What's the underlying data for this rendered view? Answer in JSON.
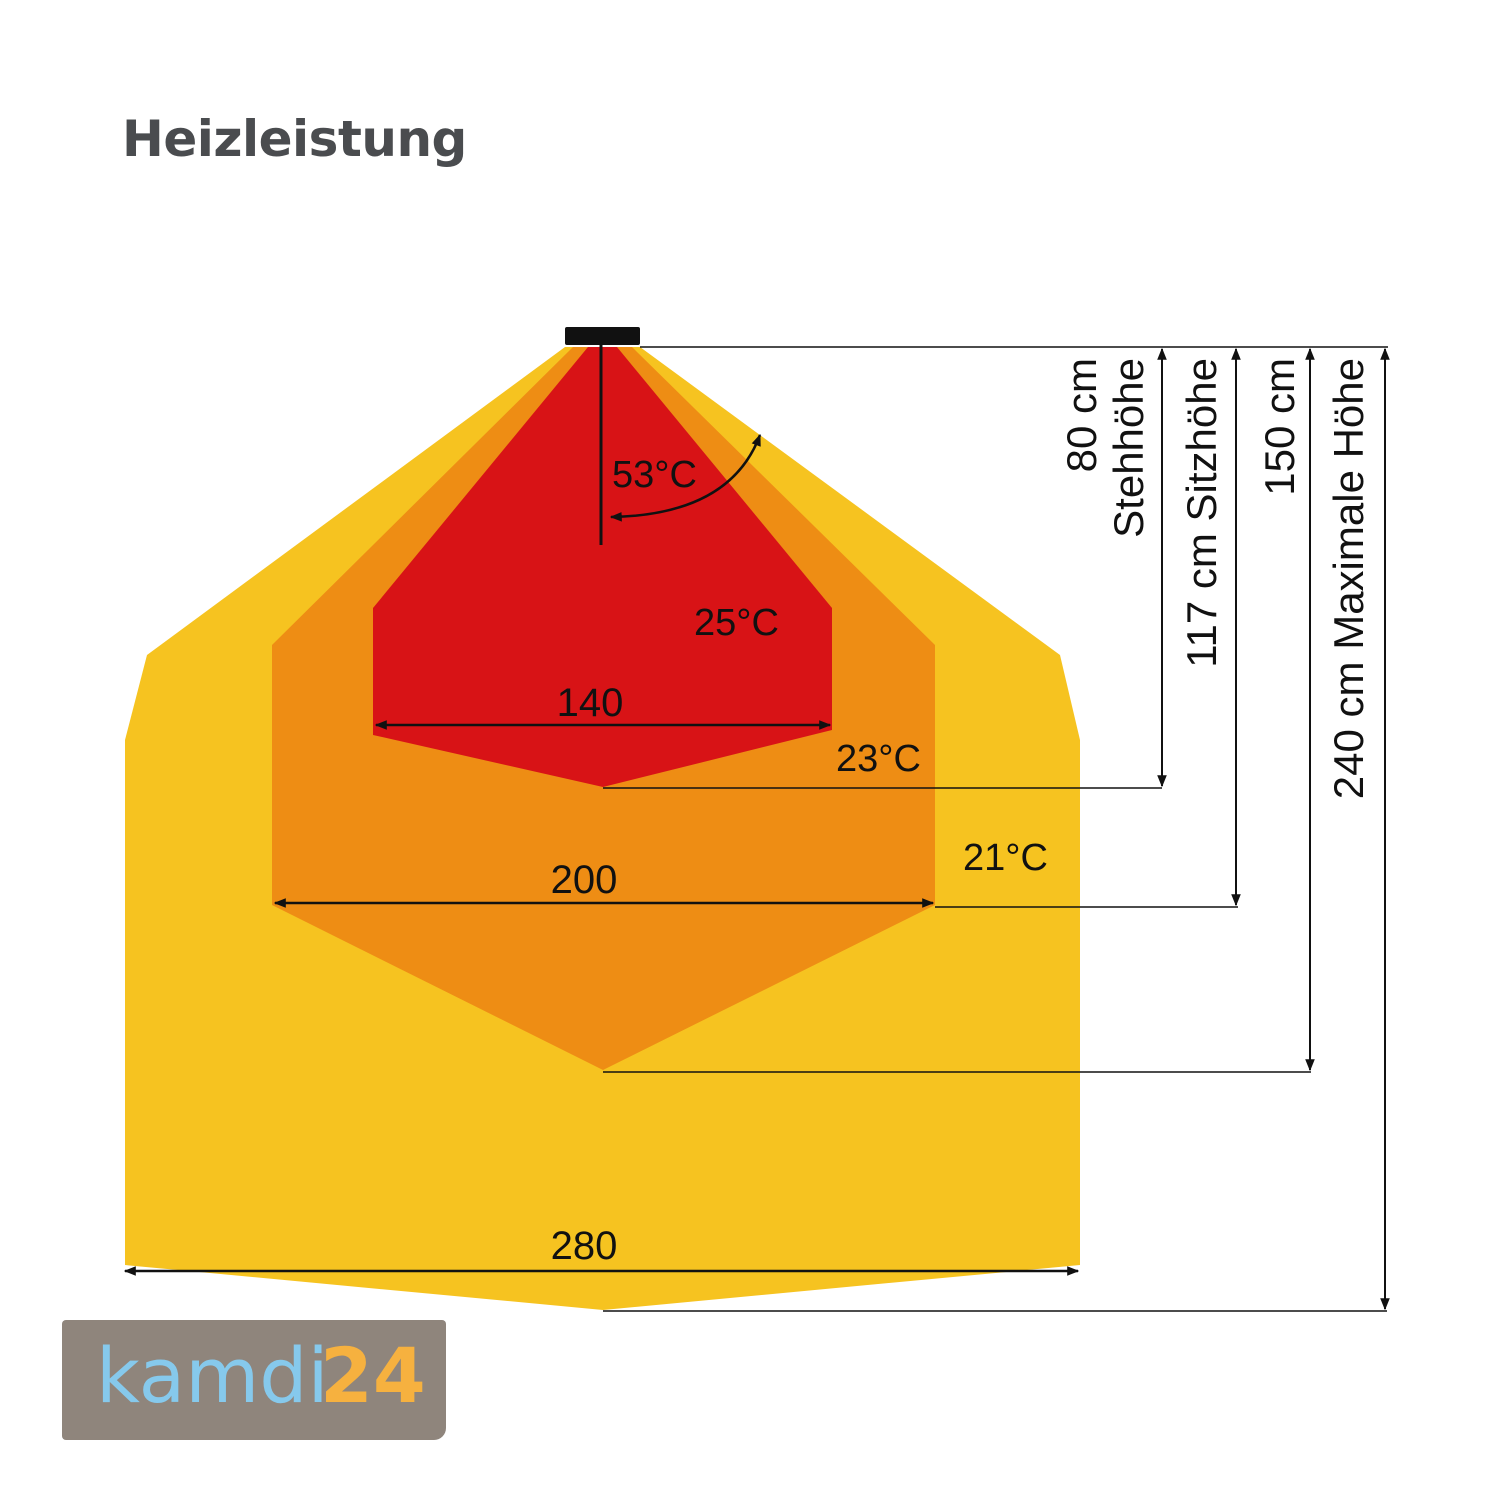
{
  "title": "Heizleistung",
  "colors": {
    "zone_21": "#f6c320",
    "zone_23": "#ee8d14",
    "zone_25": "#d81316",
    "logo_bg": "#8f857c",
    "logo_text": "#86c9ec",
    "logo_number": "#f6b13f"
  },
  "temperatures": {
    "heater": "53°C",
    "zone_25": "25°C",
    "zone_23": "23°C",
    "zone_21": "21°C"
  },
  "widths": {
    "w140": "140",
    "w200": "200",
    "w280": "280"
  },
  "heights": [
    {
      "line1": "80 cm",
      "line2": "Stehhöhe"
    },
    {
      "line1": "117 cm Sitzhöhe"
    },
    {
      "line1": "150 cm"
    },
    {
      "line1": "240 cm Maximale Höhe"
    }
  ],
  "logo": {
    "word": "kamdi",
    "number": "24"
  }
}
